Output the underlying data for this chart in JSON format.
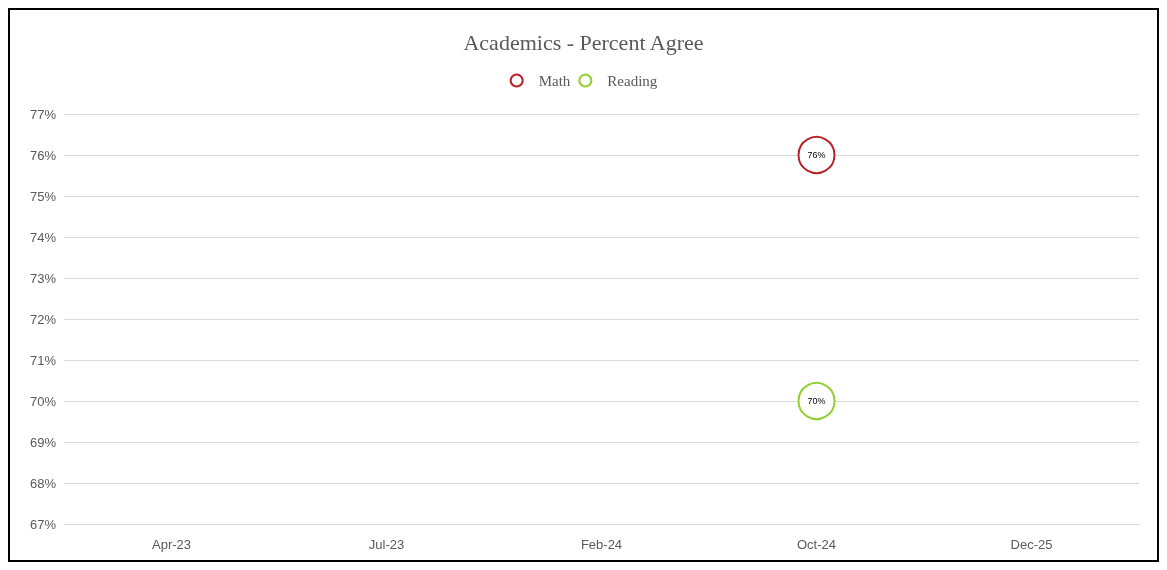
{
  "chart_data": {
    "type": "line",
    "title": "Academics - Percent Agree",
    "categories": [
      "Apr-23",
      "Jul-23",
      "Feb-24",
      "Oct-24",
      "Dec-25"
    ],
    "series": [
      {
        "name": "Math",
        "color": "#b5252b",
        "values": [
          null,
          null,
          null,
          76,
          null
        ],
        "value_labels": [
          null,
          null,
          null,
          "76%",
          null
        ]
      },
      {
        "name": "Reading",
        "color": "#92cf32",
        "values": [
          null,
          null,
          null,
          70,
          null
        ],
        "value_labels": [
          null,
          null,
          null,
          "70%",
          null
        ]
      }
    ],
    "ylim": [
      67,
      77
    ],
    "yticks": [
      {
        "value": 67,
        "label": "67%"
      },
      {
        "value": 68,
        "label": "68%"
      },
      {
        "value": 69,
        "label": "69%"
      },
      {
        "value": 70,
        "label": "70%"
      },
      {
        "value": 71,
        "label": "71%"
      },
      {
        "value": 72,
        "label": "72%"
      },
      {
        "value": 73,
        "label": "73%"
      },
      {
        "value": 74,
        "label": "74%"
      },
      {
        "value": 75,
        "label": "75%"
      },
      {
        "value": 76,
        "label": "76%"
      },
      {
        "value": 77,
        "label": "77%"
      }
    ],
    "grid": "y",
    "legend": "top",
    "marker": "circle"
  }
}
